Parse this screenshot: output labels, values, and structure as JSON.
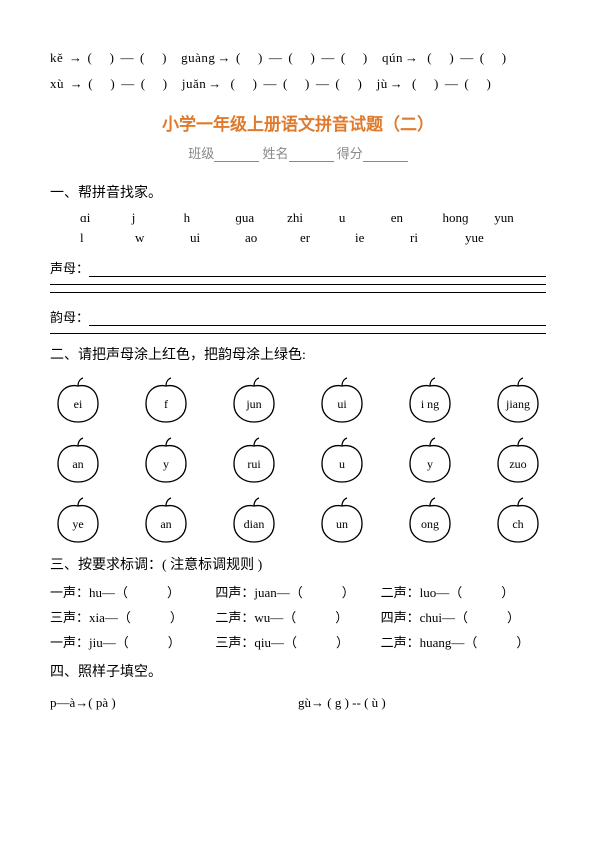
{
  "top": {
    "line1": {
      "s1": "kě",
      "s2": "guàng",
      "s3": "qún"
    },
    "line2": {
      "s1": "xù",
      "s2": "juǎn",
      "s3": "jù"
    }
  },
  "title": "小学一年级上册语文拼音试题（二）",
  "subhead": {
    "l1": "班级",
    "l2": "姓名",
    "l3": "得分"
  },
  "q1": {
    "heading": "一、帮拼音找家。",
    "row1": [
      "ɑi",
      "j",
      "h",
      "ɡua",
      "zhi",
      "u",
      "en",
      "honɡ",
      "yun"
    ],
    "row2": [
      "l",
      "w",
      "ui",
      "ao",
      "er",
      "ie",
      "ri",
      "yue",
      ""
    ],
    "sm_label": "声母：",
    "ym_label": "韵母："
  },
  "q2": {
    "heading": "二、请把声母涂上红色，把韵母涂上绿色:",
    "rows": [
      [
        "ei",
        "f",
        "jun",
        "ui",
        "i ng",
        "jiang"
      ],
      [
        "an",
        "y",
        "rui",
        "u",
        "y",
        "zuo"
      ],
      [
        "ye",
        "an",
        "dian",
        "un",
        "ong",
        "ch"
      ]
    ]
  },
  "q3": {
    "heading": "三、按要求标调：( 注意标调规则 )",
    "lines": [
      [
        {
          "tone": "一声",
          "py": "hu"
        },
        {
          "tone": "四声",
          "py": "juan"
        },
        {
          "tone": "二声",
          "py": "luo"
        }
      ],
      [
        {
          "tone": "三声",
          "py": "xia"
        },
        {
          "tone": "二声",
          "py": "wu"
        },
        {
          "tone": "四声",
          "py": "chui"
        }
      ],
      [
        {
          "tone": "一声",
          "py": "jiu"
        },
        {
          "tone": "三声",
          "py": "qiu"
        },
        {
          "tone": "二声",
          "py": "huang"
        }
      ]
    ]
  },
  "q4": {
    "heading": "四、照样子填空。",
    "ex1": "p—à→( pà )",
    "ex2": "gù→ ( g ) -- ( ù )"
  },
  "colors": {
    "title": "#e07b2e",
    "sub": "#888888",
    "line": "#000000"
  }
}
